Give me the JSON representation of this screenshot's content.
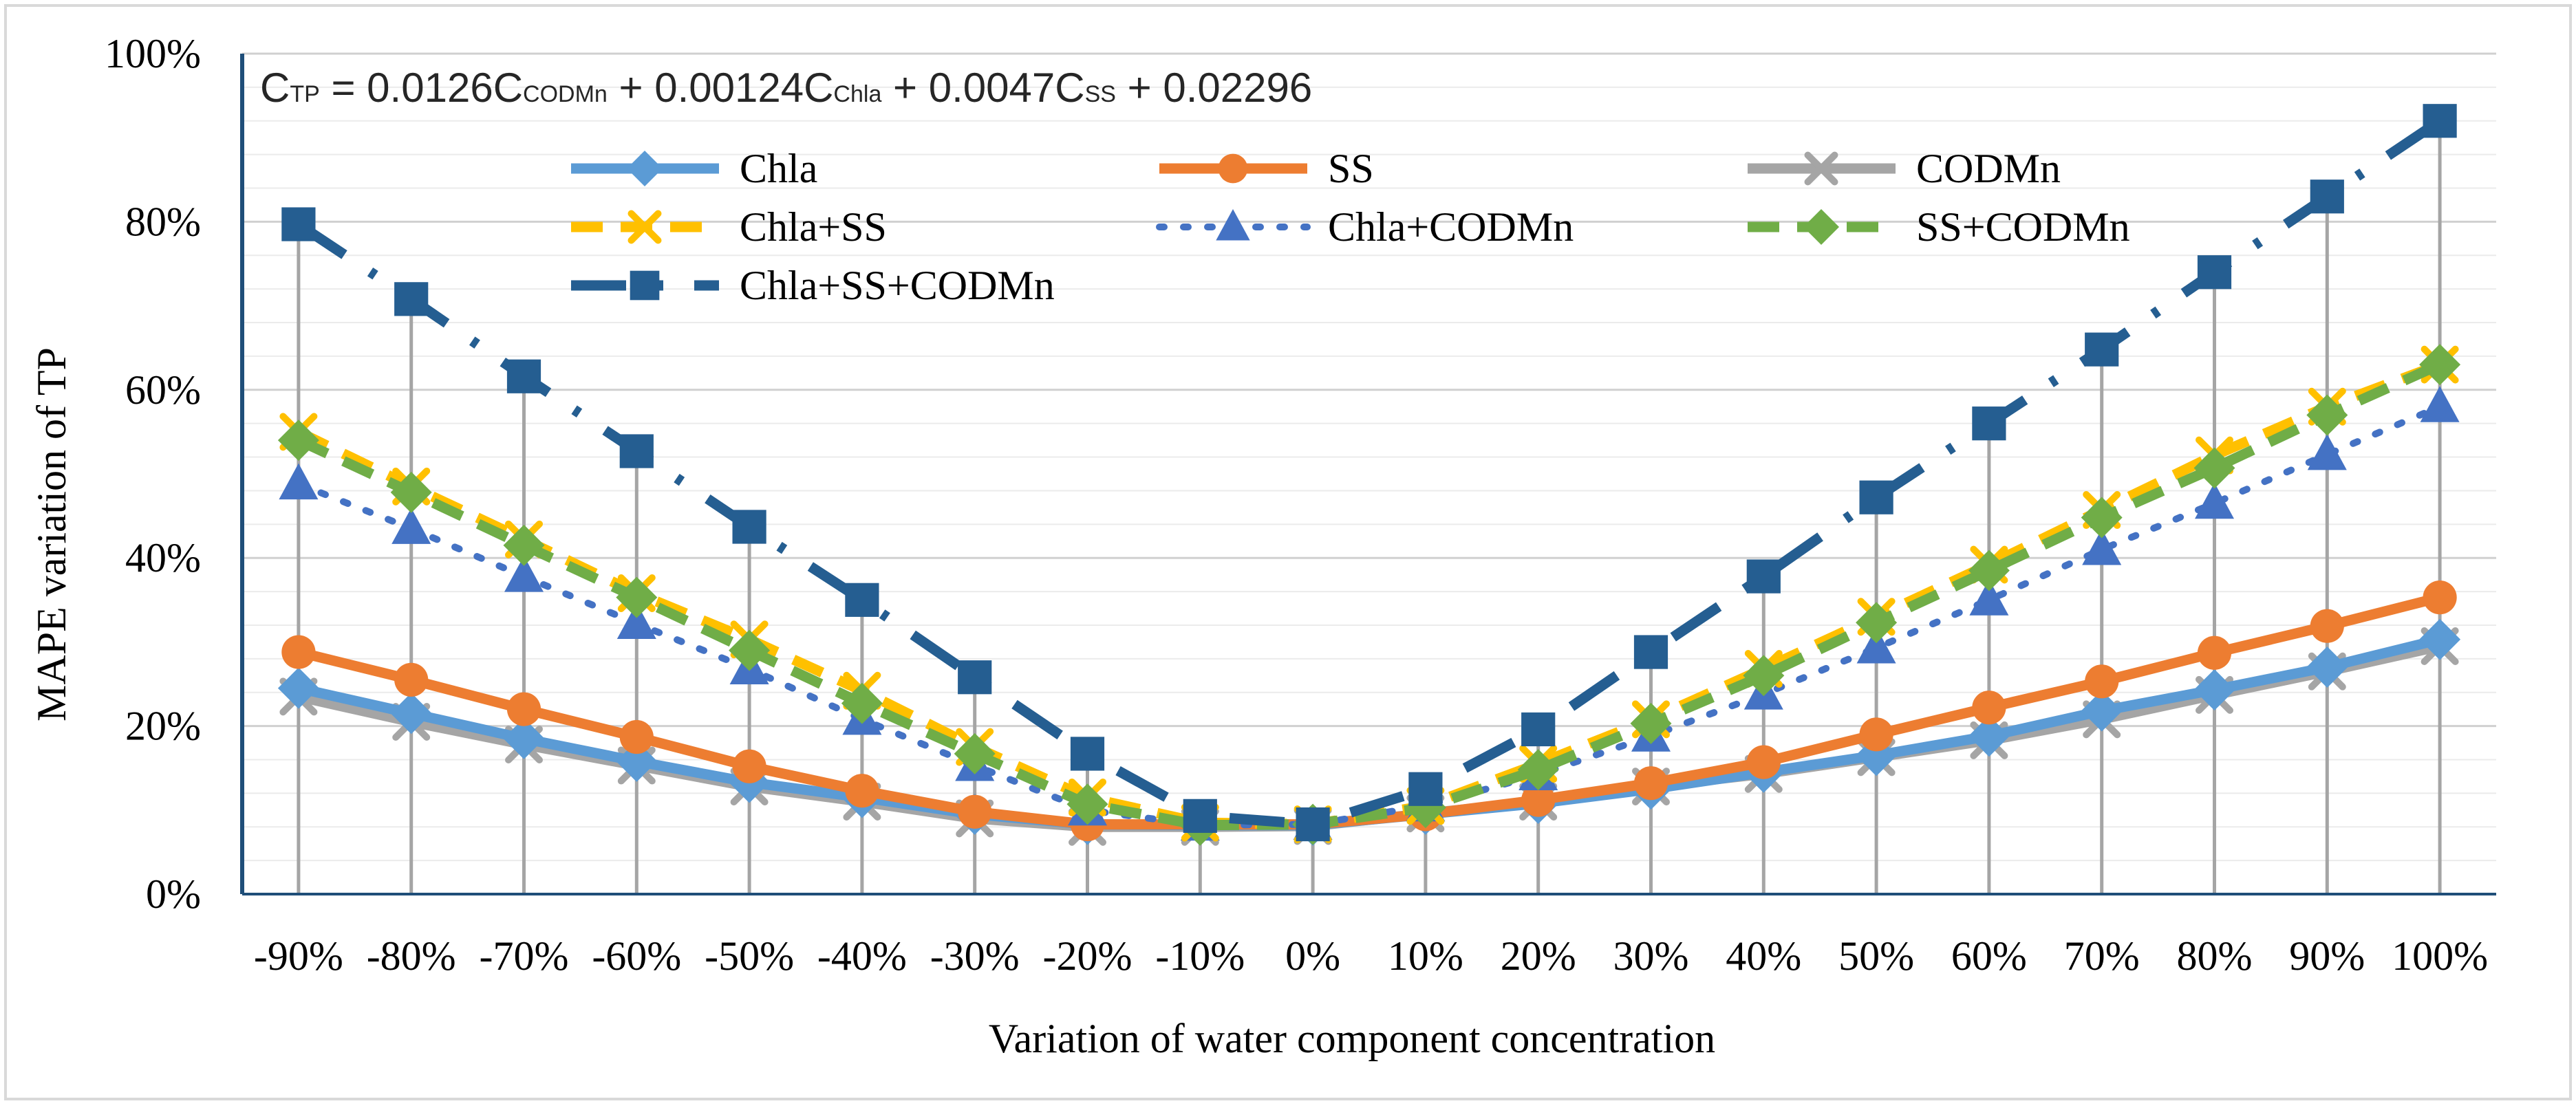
{
  "chart_data": {
    "type": "line",
    "annotation": {
      "c1": "C",
      "s1": "TP",
      "t1": " = 0.0126C",
      "s2": "CODMn",
      "t2": " + 0.00124C",
      "s3": "Chla",
      "t3": " + 0.0047C",
      "s4": "SS",
      "t4": " + 0.02296"
    },
    "xlabel": "Variation of water component concentration",
    "ylabel": "MAPE variation of TP",
    "categories": [
      "-90%",
      "-80%",
      "-70%",
      "-60%",
      "-50%",
      "-40%",
      "-30%",
      "-20%",
      "-10%",
      "0%",
      "10%",
      "20%",
      "30%",
      "40%",
      "50%",
      "60%",
      "70%",
      "80%",
      "90%",
      "100%"
    ],
    "y_ticks": [
      "0%",
      "20%",
      "40%",
      "60%",
      "80%",
      "100%"
    ],
    "ylim": [
      0,
      100
    ],
    "grid": true,
    "legend_position": "top",
    "series": [
      {
        "name": "Chla",
        "color": "#5B9BD5",
        "dash": "solid",
        "marker": "diamond",
        "values": [
          24.5,
          21.5,
          18.5,
          15.8,
          13.3,
          11.5,
          9.5,
          8.3,
          8.2,
          8.2,
          9.5,
          10.8,
          12.5,
          14.5,
          16.5,
          18.8,
          21.8,
          24.3,
          27,
          30.3
        ]
      },
      {
        "name": "SS",
        "color": "#ED7D31",
        "dash": "solid",
        "marker": "circle",
        "values": [
          28.8,
          25.5,
          22,
          18.7,
          15.2,
          12.3,
          9.8,
          8.3,
          8.3,
          8.3,
          9.5,
          11.2,
          13.2,
          15.7,
          19,
          22.2,
          25.3,
          28.7,
          31.9,
          35.3
        ]
      },
      {
        "name": "CODMn",
        "color": "#A5A5A5",
        "dash": "solid",
        "marker": "x",
        "values": [
          23.5,
          20.5,
          17.8,
          15.3,
          12.8,
          11,
          9,
          8,
          8,
          8.1,
          9.6,
          11,
          12.8,
          14.3,
          16.3,
          18.3,
          20.8,
          23.7,
          26.5,
          29.5
        ]
      },
      {
        "name": "Chla+SS",
        "color": "#FFC000",
        "dash": "dashed",
        "marker": "x",
        "values": [
          55,
          48.5,
          42.2,
          35.8,
          30.3,
          24.2,
          17.5,
          11.5,
          8.5,
          8.3,
          10.5,
          15.5,
          20.8,
          26.8,
          33,
          39.2,
          45.7,
          52.2,
          58,
          63
        ]
      },
      {
        "name": "Chla+CODMn",
        "color": "#4472C4",
        "dash": "dotted",
        "marker": "triangle",
        "values": [
          48.8,
          43.5,
          37.8,
          32.2,
          26.8,
          20.8,
          15.3,
          10,
          8.2,
          8.3,
          10.5,
          14.2,
          18.8,
          23.8,
          29.3,
          35,
          41,
          46.5,
          52.3,
          58
        ]
      },
      {
        "name": "SS+CODMn",
        "color": "#70AD47",
        "dash": "dashed",
        "marker": "diamond",
        "values": [
          54,
          47.8,
          41.5,
          35.3,
          29,
          22.7,
          16.7,
          10.7,
          8.2,
          8.3,
          10.3,
          14.8,
          20.3,
          26,
          32.3,
          38.5,
          44.8,
          50.7,
          57,
          63
        ]
      },
      {
        "name": "Chla+SS+CODMn",
        "color": "#255E91",
        "dash": "longdashdot",
        "marker": "square",
        "values": [
          79.7,
          70.8,
          61.6,
          52.7,
          43.7,
          35,
          25.8,
          16.7,
          9.3,
          8.3,
          12.5,
          19.6,
          28.8,
          37.8,
          47.2,
          56,
          64.8,
          74,
          83,
          92
        ]
      }
    ]
  }
}
